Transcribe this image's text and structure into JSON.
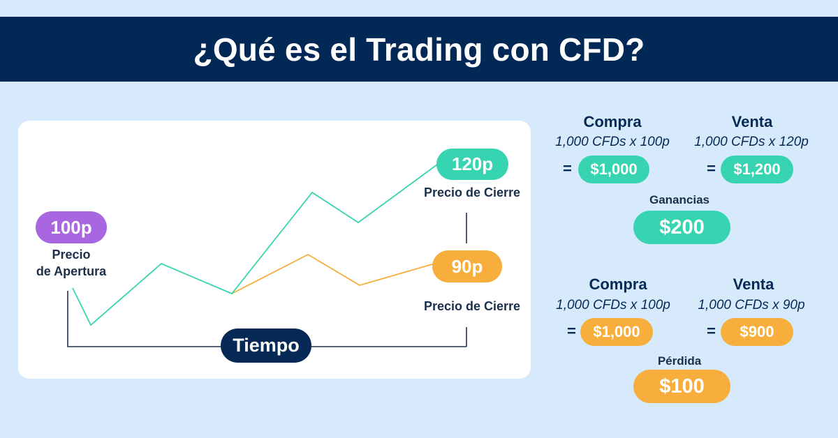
{
  "header": {
    "title": "¿Qué es el Trading con CFD?"
  },
  "diagram": {
    "open_price": "100p",
    "open_label_line1": "Precio",
    "open_label_line2": "de Apertura",
    "close_high_price": "120p",
    "close_high_label": "Precio de Cierre",
    "close_low_price": "90p",
    "close_low_label": "Precio de Cierre",
    "time_label": "Tiempo"
  },
  "profit": {
    "buy_heading": "Compra",
    "buy_detail": "1,000 CFDs x 100p",
    "buy_equals": "=",
    "buy_total": "$1,000",
    "sell_heading": "Venta",
    "sell_detail": "1,000 CFDs x 120p",
    "sell_equals": "=",
    "sell_total": "$1,200",
    "result_label": "Ganancias",
    "result_value": "$200"
  },
  "loss": {
    "buy_heading": "Compra",
    "buy_detail": "1,000 CFDs x 100p",
    "buy_equals": "=",
    "buy_total": "$1,000",
    "sell_heading": "Venta",
    "sell_detail": "1,000 CFDs x 90p",
    "sell_equals": "=",
    "sell_total": "$900",
    "result_label": "Pérdida",
    "result_value": "$100"
  },
  "colors": {
    "background": "#d6eafb",
    "header": "#022856",
    "profit": "#36d4b0",
    "loss": "#f8ae3c",
    "open": "#a867e0",
    "navy": "#062a55"
  }
}
